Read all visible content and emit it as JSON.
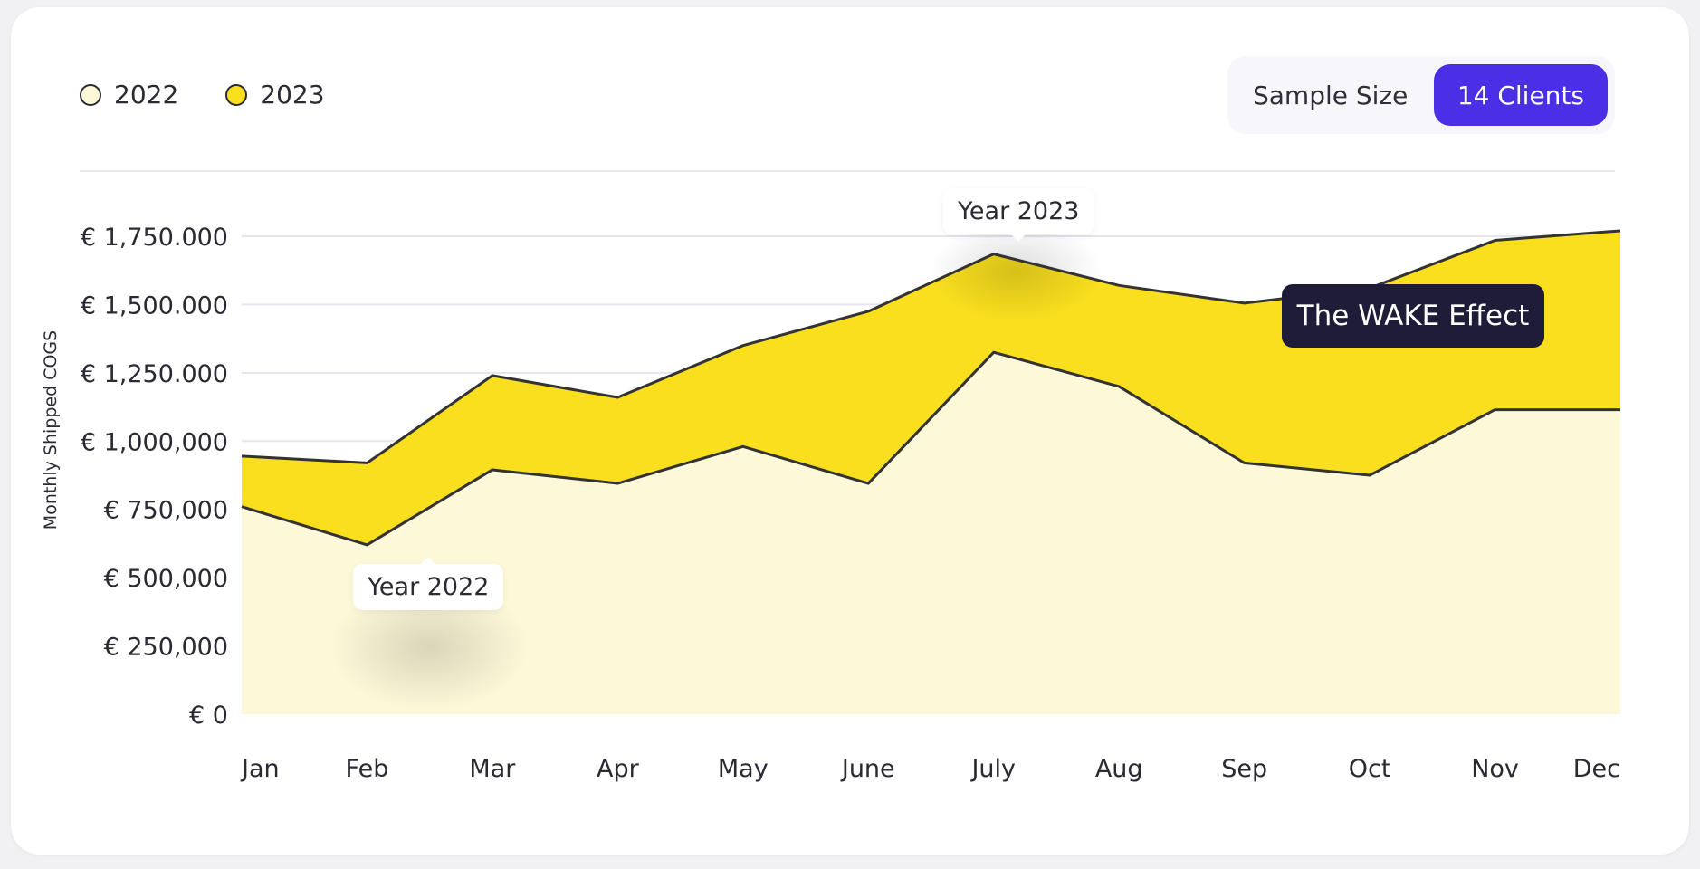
{
  "legend": [
    {
      "label": "2022",
      "color": "#fcf8d8"
    },
    {
      "label": "2023",
      "color": "#f9df1e"
    }
  ],
  "toggle": {
    "label": "Sample Size",
    "button_label": "14 Clients",
    "accent": "#4a2fe6"
  },
  "annotations": {
    "year_2022": "Year 2022",
    "year_2023": "Year 2023",
    "wake_effect": "The WAKE Effect"
  },
  "chart_data": {
    "type": "area",
    "title": "",
    "xlabel": "",
    "ylabel": "Monthly Shipped COGS",
    "categories": [
      "Jan",
      "Feb",
      "Mar",
      "Apr",
      "May",
      "June",
      "July",
      "Aug",
      "Sep",
      "Oct",
      "Nov",
      "Dec"
    ],
    "y_ticks": [
      {
        "value": 0,
        "label": "€ 0"
      },
      {
        "value": 250000,
        "label": "€ 250,000"
      },
      {
        "value": 500000,
        "label": "€ 500,000"
      },
      {
        "value": 750000,
        "label": "€ 750,000"
      },
      {
        "value": 1000000,
        "label": "€ 1,000,000"
      },
      {
        "value": 1250000,
        "label": "€ 1,250.000"
      },
      {
        "value": 1500000,
        "label": "€ 1,500.000"
      },
      {
        "value": 1750000,
        "label": "€ 1,750.000"
      }
    ],
    "ylim": [
      0,
      1750000
    ],
    "grid": true,
    "legend_position": "top-left",
    "series": [
      {
        "name": "2022",
        "color": "#fcf8d8",
        "values": [
          760000,
          620000,
          895000,
          845000,
          980000,
          845000,
          1325000,
          1200000,
          920000,
          875000,
          1115000,
          1115000
        ]
      },
      {
        "name": "2023",
        "color": "#f9df1e",
        "values": [
          945000,
          920000,
          1240000,
          1160000,
          1350000,
          1475000,
          1685000,
          1570000,
          1505000,
          1560000,
          1735000,
          1770000
        ]
      }
    ]
  }
}
